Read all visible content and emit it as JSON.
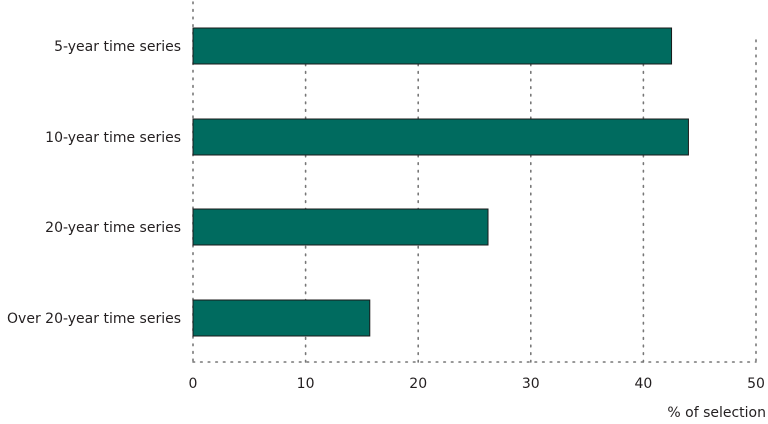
{
  "chart_data": {
    "type": "bar",
    "orientation": "horizontal",
    "categories": [
      "5-year time series",
      "10-year time series",
      "20-year time series",
      "Over 20-year time series"
    ],
    "values": [
      42.5,
      44,
      26.2,
      15.7
    ],
    "xlabel": "% of selection",
    "xlim": [
      0,
      50
    ],
    "xticks": [
      0,
      10,
      20,
      30,
      40,
      50
    ],
    "grid": "vertical dotted",
    "colors": {
      "bar": "#006b5f",
      "bar_stroke": "#1a1a1a",
      "grid": "#777777",
      "text": "#231f20"
    }
  }
}
